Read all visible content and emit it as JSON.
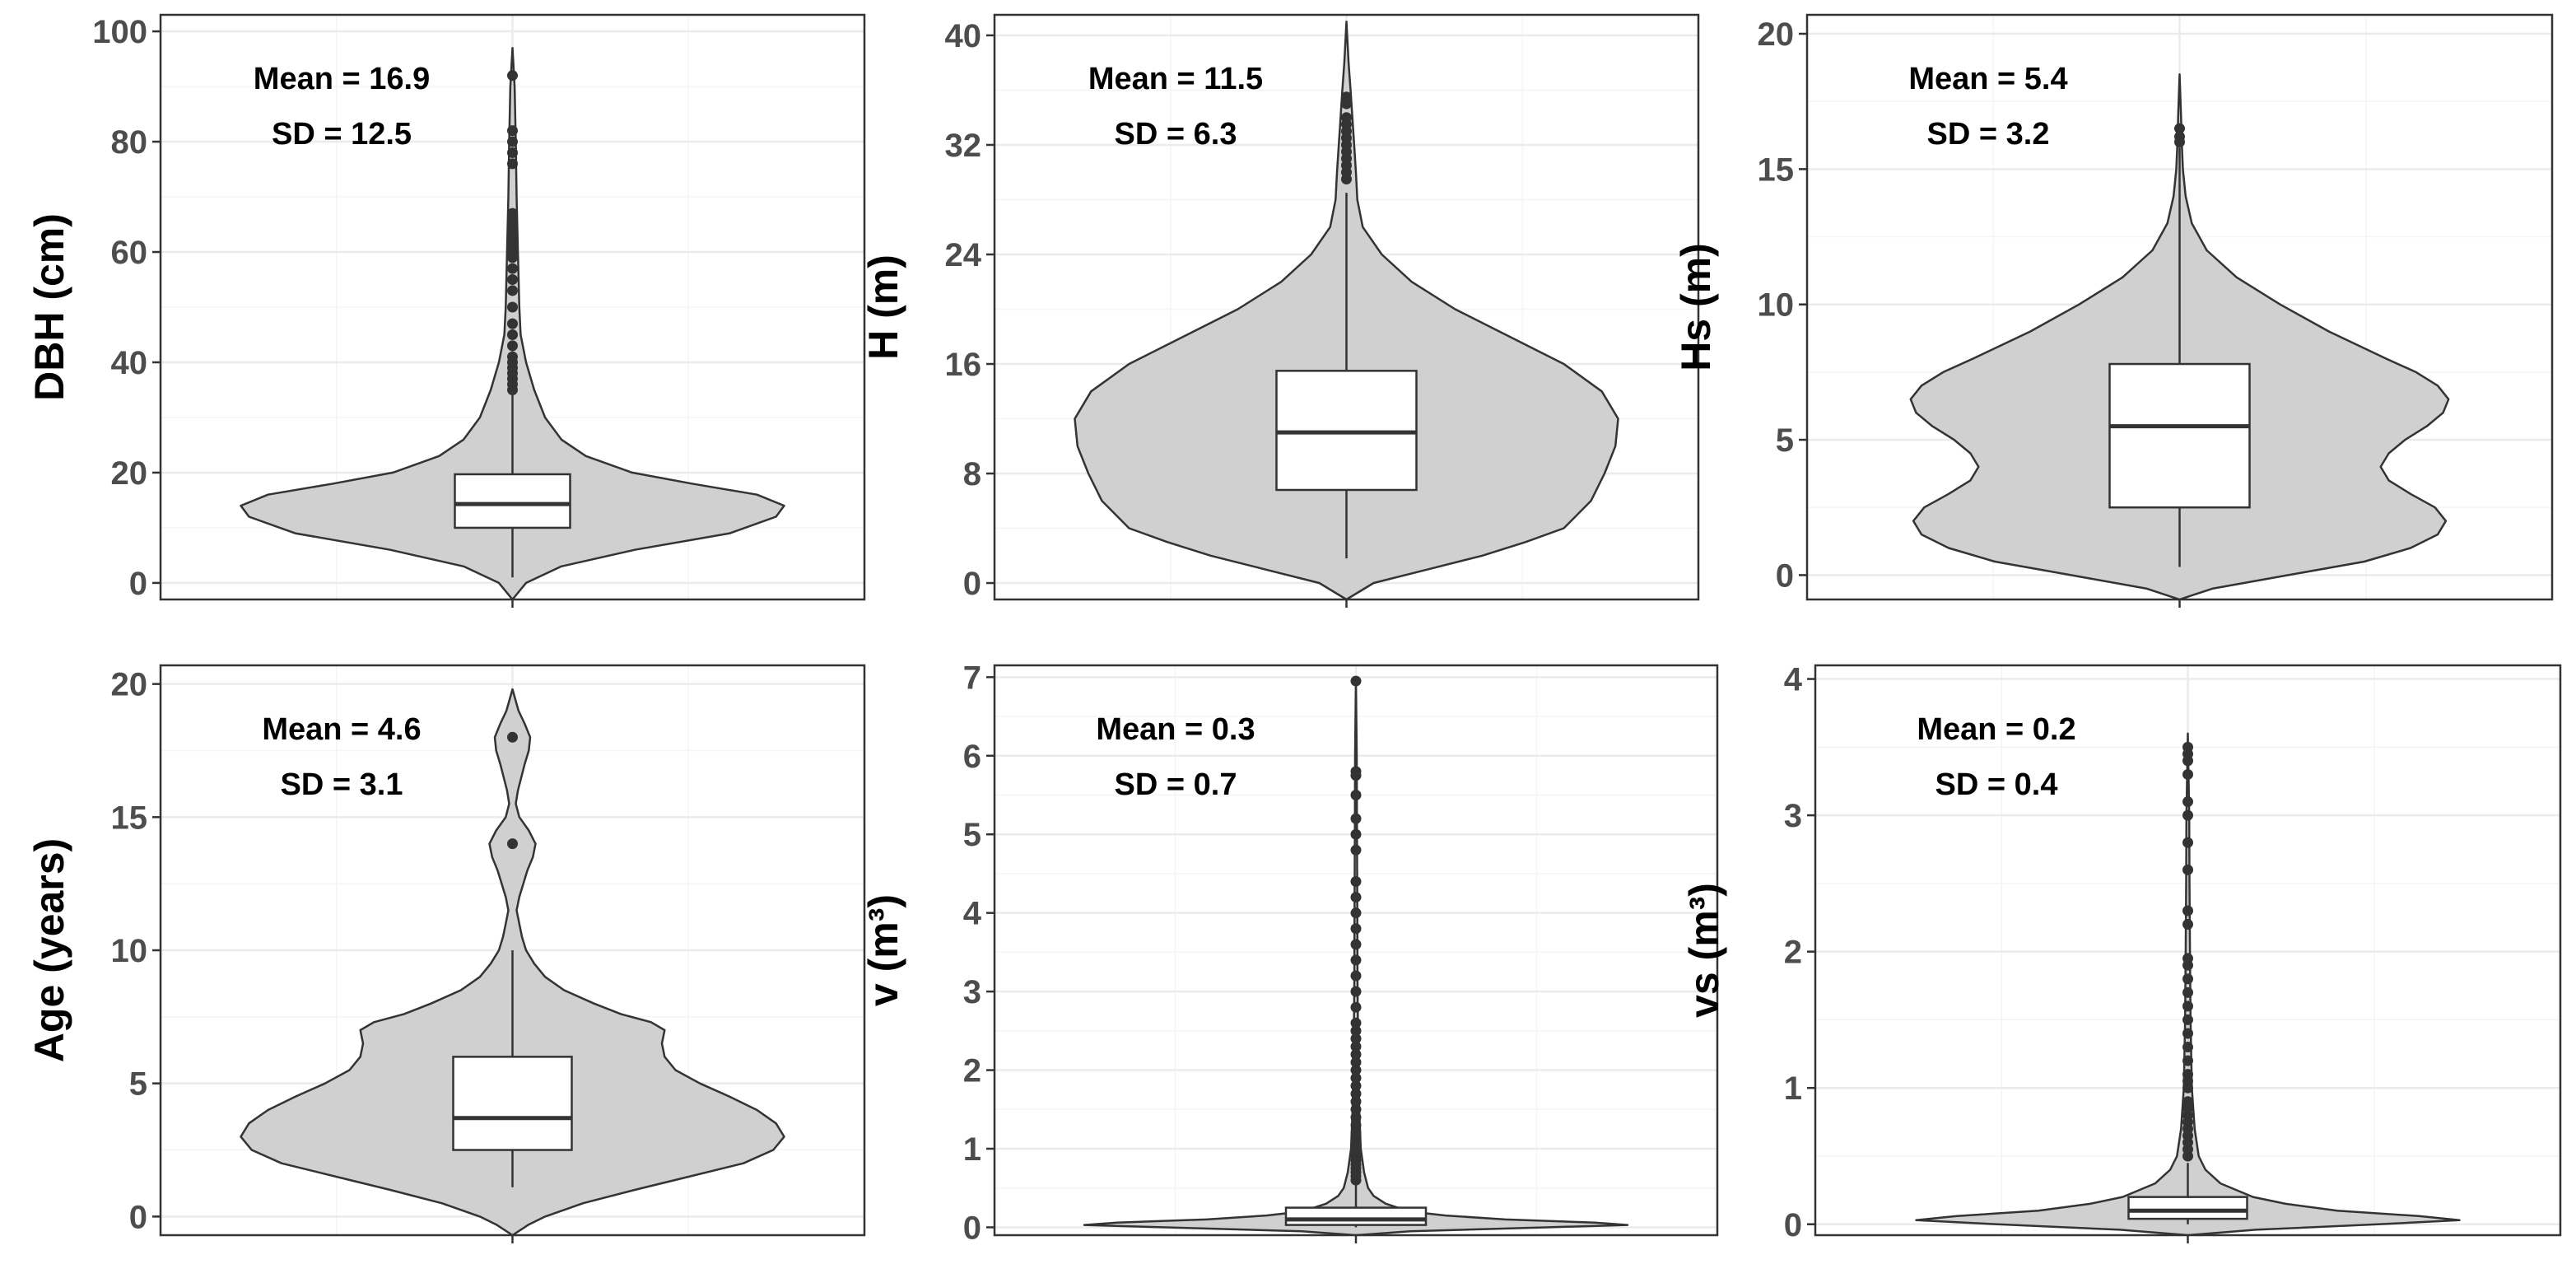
{
  "chart_data": [
    {
      "type": "violin",
      "ylabel": "DBH (cm)",
      "ylim": [
        -3,
        103
      ],
      "yticks": [
        0,
        20,
        40,
        60,
        80,
        100
      ],
      "annotations": {
        "mean": "Mean = 16.9",
        "sd": "SD = 12.5"
      },
      "violin": {
        "min": -3,
        "max": 97,
        "profile": [
          [
            -3,
            0.0
          ],
          [
            0,
            0.05
          ],
          [
            3,
            0.18
          ],
          [
            6,
            0.45
          ],
          [
            9,
            0.8
          ],
          [
            12,
            0.97
          ],
          [
            14,
            1.0
          ],
          [
            16,
            0.9
          ],
          [
            18,
            0.66
          ],
          [
            20,
            0.44
          ],
          [
            23,
            0.27
          ],
          [
            26,
            0.18
          ],
          [
            30,
            0.12
          ],
          [
            35,
            0.08
          ],
          [
            40,
            0.05
          ],
          [
            45,
            0.03
          ],
          [
            50,
            0.025
          ],
          [
            60,
            0.02
          ],
          [
            70,
            0.015
          ],
          [
            80,
            0.012
          ],
          [
            90,
            0.008
          ],
          [
            97,
            0.0
          ]
        ]
      },
      "box": {
        "q1": 10,
        "median": 14.3,
        "q3": 19.7,
        "whisker_low": 1,
        "whisker_high": 42
      },
      "outliers": [
        35,
        36,
        37,
        38,
        39,
        40,
        41,
        43,
        45,
        47,
        50,
        53,
        55,
        57,
        59,
        60,
        61,
        62,
        63,
        64,
        65,
        66,
        67,
        76,
        78,
        80,
        82,
        92
      ]
    },
    {
      "type": "violin",
      "ylabel": "H (m)",
      "ylim": [
        -1.2,
        41.5
      ],
      "yticks": [
        0,
        8,
        16,
        24,
        32,
        40
      ],
      "annotations": {
        "mean": "Mean = 11.5",
        "sd": "SD = 6.3"
      },
      "violin": {
        "min": -1.2,
        "max": 41,
        "profile": [
          [
            -1.2,
            0.0
          ],
          [
            0,
            0.1
          ],
          [
            1,
            0.3
          ],
          [
            2,
            0.5
          ],
          [
            3,
            0.66
          ],
          [
            4,
            0.8
          ],
          [
            6,
            0.9
          ],
          [
            8,
            0.95
          ],
          [
            10,
            0.99
          ],
          [
            12,
            1.0
          ],
          [
            14,
            0.94
          ],
          [
            16,
            0.8
          ],
          [
            18,
            0.6
          ],
          [
            20,
            0.4
          ],
          [
            22,
            0.24
          ],
          [
            24,
            0.13
          ],
          [
            26,
            0.06
          ],
          [
            28,
            0.04
          ],
          [
            30,
            0.035
          ],
          [
            33,
            0.025
          ],
          [
            36,
            0.015
          ],
          [
            38,
            0.008
          ],
          [
            41,
            0.0
          ]
        ]
      },
      "box": {
        "q1": 6.8,
        "median": 11,
        "q3": 15.5,
        "whisker_low": 1.8,
        "whisker_high": 28.5
      },
      "outliers": [
        29.5,
        30,
        30.5,
        31,
        31.5,
        32,
        32.5,
        33,
        33.5,
        34,
        35,
        35.5
      ]
    },
    {
      "type": "violin",
      "ylabel": "Hs (m)",
      "ylim": [
        -0.9,
        20.7
      ],
      "yticks": [
        0,
        5,
        10,
        15,
        20
      ],
      "annotations": {
        "mean": "Mean = 5.4",
        "sd": "SD = 3.2"
      },
      "violin": {
        "min": -0.9,
        "max": 18.5,
        "profile": [
          [
            -0.9,
            0.0
          ],
          [
            -0.5,
            0.12
          ],
          [
            0,
            0.4
          ],
          [
            0.5,
            0.68
          ],
          [
            1,
            0.85
          ],
          [
            1.5,
            0.95
          ],
          [
            2,
            0.98
          ],
          [
            2.5,
            0.94
          ],
          [
            3,
            0.85
          ],
          [
            3.5,
            0.77
          ],
          [
            4,
            0.74
          ],
          [
            4.5,
            0.77
          ],
          [
            5,
            0.83
          ],
          [
            5.5,
            0.91
          ],
          [
            6,
            0.97
          ],
          [
            6.5,
            0.99
          ],
          [
            7,
            0.95
          ],
          [
            7.5,
            0.87
          ],
          [
            8,
            0.76
          ],
          [
            9,
            0.55
          ],
          [
            10,
            0.37
          ],
          [
            11,
            0.21
          ],
          [
            12,
            0.1
          ],
          [
            13,
            0.045
          ],
          [
            14,
            0.022
          ],
          [
            15,
            0.012
          ],
          [
            16,
            0.008
          ],
          [
            17,
            0.005
          ],
          [
            18.5,
            0.0
          ]
        ]
      },
      "box": {
        "q1": 2.5,
        "median": 5.5,
        "q3": 7.8,
        "whisker_low": 0.3,
        "whisker_high": 15.8
      },
      "outliers": [
        16,
        16.2,
        16.5
      ]
    },
    {
      "type": "violin",
      "ylabel": "Age (years)",
      "ylim": [
        -0.7,
        20.7
      ],
      "yticks": [
        0,
        5,
        10,
        15,
        20
      ],
      "annotations": {
        "mean": "Mean = 4.6",
        "sd": "SD = 3.1"
      },
      "violin": {
        "min": -0.7,
        "max": 19.8,
        "profile": [
          [
            -0.7,
            0.0
          ],
          [
            -0.3,
            0.06
          ],
          [
            0,
            0.12
          ],
          [
            0.5,
            0.26
          ],
          [
            1,
            0.45
          ],
          [
            1.5,
            0.65
          ],
          [
            2,
            0.85
          ],
          [
            2.5,
            0.96
          ],
          [
            3,
            1.0
          ],
          [
            3.5,
            0.97
          ],
          [
            4,
            0.9
          ],
          [
            4.5,
            0.8
          ],
          [
            5,
            0.69
          ],
          [
            5.5,
            0.6
          ],
          [
            6,
            0.56
          ],
          [
            6.5,
            0.55
          ],
          [
            7,
            0.56
          ],
          [
            7.3,
            0.51
          ],
          [
            7.6,
            0.4
          ],
          [
            8,
            0.3
          ],
          [
            8.5,
            0.19
          ],
          [
            9,
            0.12
          ],
          [
            9.5,
            0.08
          ],
          [
            10,
            0.05
          ],
          [
            10.5,
            0.035
          ],
          [
            11,
            0.025
          ],
          [
            11.5,
            0.015
          ],
          [
            12,
            0.025
          ],
          [
            13,
            0.055
          ],
          [
            13.5,
            0.075
          ],
          [
            14,
            0.085
          ],
          [
            14.5,
            0.06
          ],
          [
            15,
            0.025
          ],
          [
            15.5,
            0.012
          ],
          [
            16,
            0.02
          ],
          [
            17,
            0.045
          ],
          [
            17.5,
            0.06
          ],
          [
            18,
            0.065
          ],
          [
            18.5,
            0.045
          ],
          [
            19,
            0.022
          ],
          [
            19.8,
            0.0
          ]
        ]
      },
      "box": {
        "q1": 2.5,
        "median": 3.7,
        "q3": 6,
        "whisker_low": 1.1,
        "whisker_high": 10
      },
      "outliers": [
        14,
        18
      ]
    },
    {
      "type": "violin",
      "ylabel": "v (m³)",
      "ylim": [
        -0.1,
        7.15
      ],
      "yticks": [
        0,
        1,
        2,
        3,
        4,
        5,
        6,
        7
      ],
      "annotations": {
        "mean": "Mean = 0.3",
        "sd": "SD = 0.7"
      },
      "violin": {
        "min": -0.1,
        "max": 7,
        "profile": [
          [
            -0.1,
            0.0
          ],
          [
            -0.05,
            0.2
          ],
          [
            0,
            0.7
          ],
          [
            0.03,
            1.0
          ],
          [
            0.06,
            0.88
          ],
          [
            0.1,
            0.55
          ],
          [
            0.15,
            0.33
          ],
          [
            0.2,
            0.2
          ],
          [
            0.3,
            0.11
          ],
          [
            0.4,
            0.065
          ],
          [
            0.5,
            0.045
          ],
          [
            0.7,
            0.03
          ],
          [
            1,
            0.018
          ],
          [
            1.5,
            0.012
          ],
          [
            2,
            0.009
          ],
          [
            3,
            0.006
          ],
          [
            4,
            0.005
          ],
          [
            5,
            0.004
          ],
          [
            6,
            0.003
          ],
          [
            7,
            0.0
          ]
        ]
      },
      "box": {
        "q1": 0.03,
        "median": 0.1,
        "q3": 0.25,
        "whisker_low": 0.0,
        "whisker_high": 0.58
      },
      "outliers": [
        0.6,
        0.65,
        0.7,
        0.75,
        0.8,
        0.85,
        0.9,
        0.95,
        1.0,
        1.1,
        1.2,
        1.3,
        1.4,
        1.5,
        1.6,
        1.7,
        1.8,
        1.9,
        2.0,
        2.1,
        2.2,
        2.3,
        2.4,
        2.5,
        2.6,
        2.8,
        3.0,
        3.2,
        3.4,
        3.6,
        3.8,
        4.0,
        4.2,
        4.4,
        4.8,
        5.0,
        5.2,
        5.5,
        5.75,
        5.8,
        6.95
      ]
    },
    {
      "type": "violin",
      "ylabel": "vs (m³)",
      "ylim": [
        -0.08,
        4.1
      ],
      "yticks": [
        0,
        1,
        2,
        3,
        4
      ],
      "annotations": {
        "mean": "Mean = 0.2",
        "sd": "SD = 0.4"
      },
      "violin": {
        "min": -0.08,
        "max": 3.6,
        "profile": [
          [
            -0.08,
            0.0
          ],
          [
            -0.04,
            0.25
          ],
          [
            0,
            0.7
          ],
          [
            0.03,
            1.0
          ],
          [
            0.06,
            0.85
          ],
          [
            0.1,
            0.55
          ],
          [
            0.15,
            0.36
          ],
          [
            0.2,
            0.24
          ],
          [
            0.3,
            0.12
          ],
          [
            0.4,
            0.065
          ],
          [
            0.5,
            0.04
          ],
          [
            0.7,
            0.025
          ],
          [
            1,
            0.015
          ],
          [
            1.5,
            0.01
          ],
          [
            2,
            0.008
          ],
          [
            2.5,
            0.006
          ],
          [
            3,
            0.005
          ],
          [
            3.6,
            0.0
          ]
        ]
      },
      "box": {
        "q1": 0.04,
        "median": 0.1,
        "q3": 0.2,
        "whisker_low": 0.0,
        "whisker_high": 0.45
      },
      "outliers": [
        0.5,
        0.55,
        0.6,
        0.65,
        0.7,
        0.75,
        0.8,
        0.85,
        0.9,
        1.0,
        1.05,
        1.1,
        1.2,
        1.3,
        1.4,
        1.5,
        1.6,
        1.7,
        1.8,
        1.9,
        1.95,
        2.2,
        2.3,
        2.6,
        2.8,
        3.0,
        3.1,
        3.3,
        3.4,
        3.45,
        3.5
      ]
    }
  ]
}
